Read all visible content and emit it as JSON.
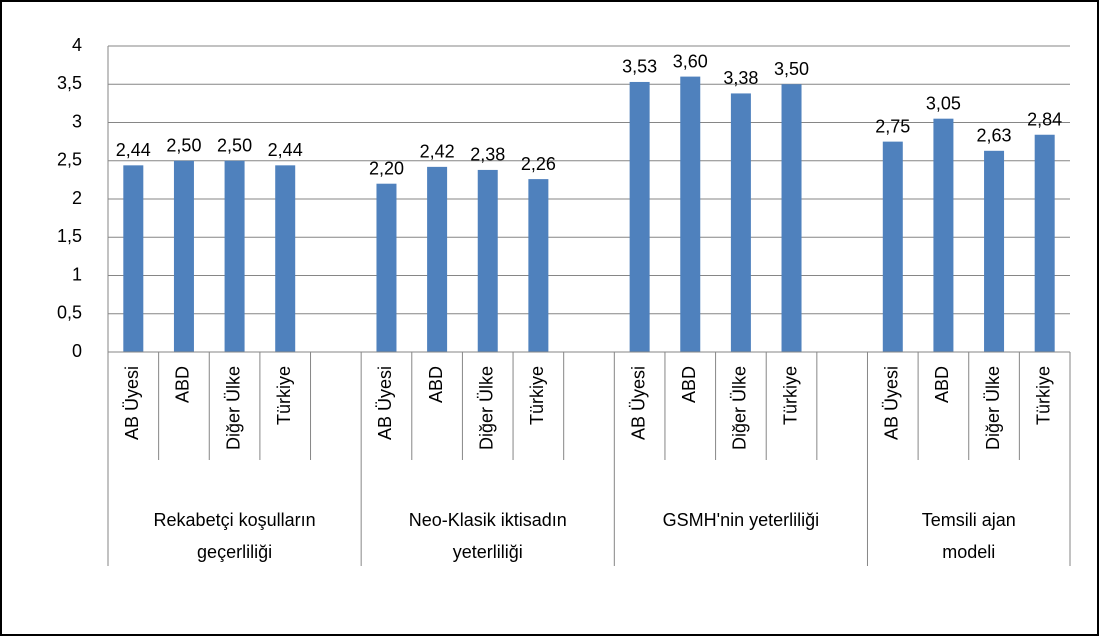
{
  "chart_data": {
    "type": "bar",
    "categories": [
      "AB Üyesi",
      "ABD",
      "Diğer Ülke",
      "Türkiye",
      null,
      "AB Üyesi",
      "ABD",
      "Diğer Ülke",
      "Türkiye",
      null,
      "AB Üyesi",
      "ABD",
      "Diğer Ülke",
      "Türkiye",
      null,
      "AB Üyesi",
      "ABD",
      "Diğer Ülke",
      "Türkiye"
    ],
    "group_labels": [
      [
        "Rekabetçi koşulların",
        "geçerliliği"
      ],
      [
        "Neo-Klasik iktisadın",
        "yeterliliği"
      ],
      [
        "GSMH'nin yeterliliği"
      ],
      [
        "Temsili ajan",
        "modeli"
      ]
    ],
    "values": [
      2.44,
      2.5,
      2.5,
      2.44,
      null,
      2.2,
      2.42,
      2.38,
      2.26,
      null,
      3.53,
      3.6,
      3.38,
      3.5,
      null,
      2.75,
      3.05,
      2.63,
      2.84
    ],
    "value_labels": [
      "2,44",
      "2,50",
      "2,50",
      "2,44",
      null,
      "2,20",
      "2,42",
      "2,38",
      "2,26",
      null,
      "3,53",
      "3,60",
      "3,38",
      "3,50",
      null,
      "2,75",
      "3,05",
      "2,63",
      "2,84"
    ],
    "color": "#4f81bd",
    "ylim": [
      0,
      4
    ],
    "yticks": [
      0,
      {
        "value": 0.5,
        "label": "0,5"
      },
      1,
      {
        "value": 1.5,
        "label": "1,5"
      },
      2,
      {
        "value": 2.5,
        "label": "2,5"
      },
      3,
      {
        "value": 3.5,
        "label": "3,5"
      },
      4
    ],
    "grid": true
  }
}
